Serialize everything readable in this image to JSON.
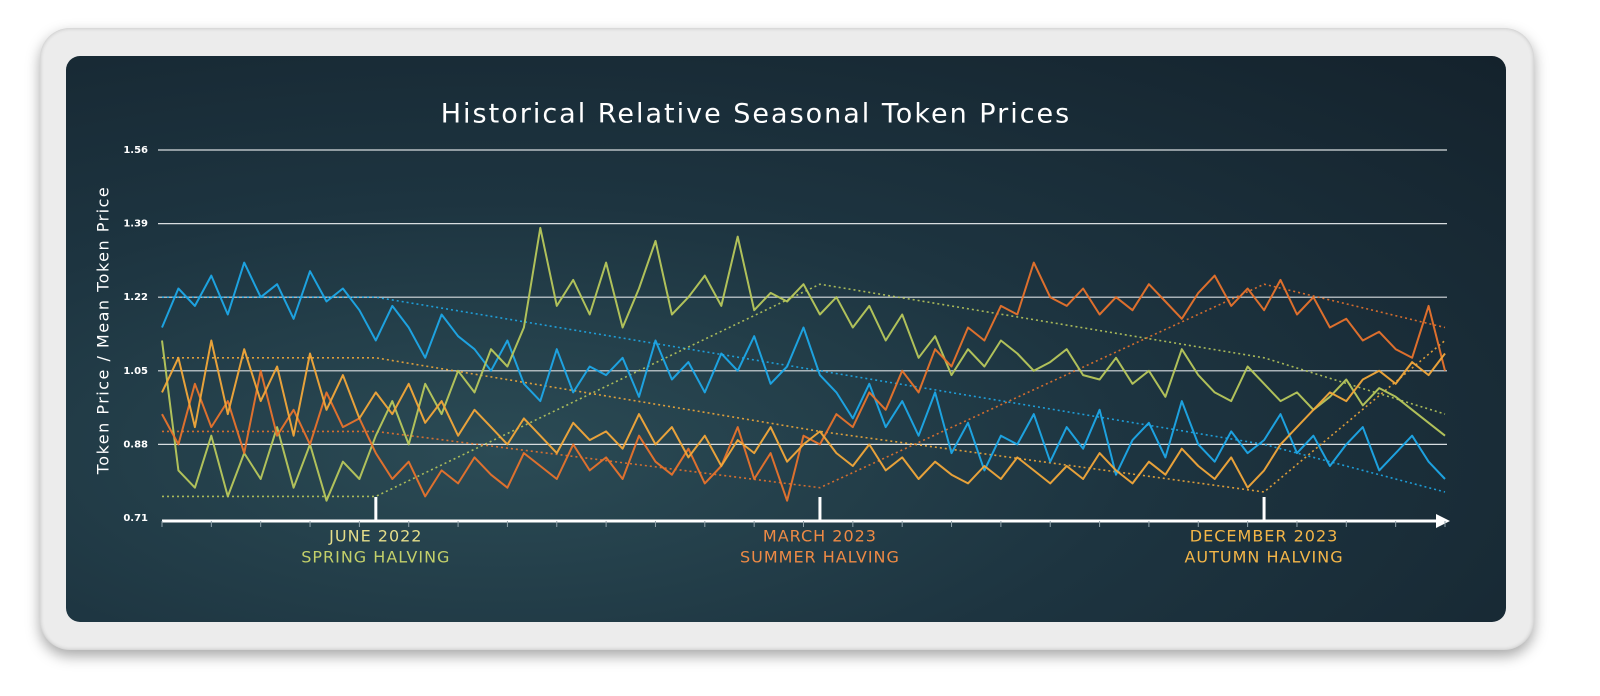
{
  "chart_data": {
    "type": "line",
    "title": "Historical Relative Seasonal Token Prices",
    "y_label": "Token Price / Mean Token Price",
    "ylim": [
      0.71,
      1.56
    ],
    "yticks": [
      0.71,
      0.88,
      1.05,
      1.22,
      1.39,
      1.56
    ],
    "grid": true,
    "xlim": [
      0,
      78
    ],
    "xticks": [
      0,
      3,
      6,
      9,
      12,
      15,
      18,
      21,
      24,
      27,
      30,
      33,
      36,
      39,
      42,
      45,
      48,
      51,
      54,
      57,
      60,
      63,
      66,
      69,
      72,
      75,
      78
    ],
    "series": [
      {
        "color": "#1ea8e8",
        "values": [
          1.15,
          1.24,
          1.2,
          1.27,
          1.18,
          1.3,
          1.22,
          1.25,
          1.17,
          1.28,
          1.21,
          1.24,
          1.19,
          1.12,
          1.2,
          1.15,
          1.08,
          1.18,
          1.13,
          1.1,
          1.05,
          1.12,
          1.02,
          0.98,
          1.1,
          1.0,
          1.06,
          1.04,
          1.08,
          0.99,
          1.12,
          1.03,
          1.07,
          1.0,
          1.09,
          1.05,
          1.13,
          1.02,
          1.06,
          1.15,
          1.04,
          1.0,
          0.94,
          1.02,
          0.92,
          0.98,
          0.9,
          1.0,
          0.86,
          0.93,
          0.82,
          0.9,
          0.88,
          0.95,
          0.84,
          0.92,
          0.87,
          0.96,
          0.81,
          0.89,
          0.93,
          0.85,
          0.98,
          0.88,
          0.84,
          0.91,
          0.86,
          0.89,
          0.95,
          0.86,
          0.9,
          0.83,
          0.88,
          0.92,
          0.82,
          0.86,
          0.9,
          0.84,
          0.8
        ]
      },
      {
        "color": "#b8c85c",
        "values": [
          1.12,
          0.82,
          0.78,
          0.9,
          0.76,
          0.86,
          0.8,
          0.92,
          0.78,
          0.88,
          0.75,
          0.84,
          0.8,
          0.9,
          0.98,
          0.88,
          1.02,
          0.95,
          1.05,
          1.0,
          1.1,
          1.06,
          1.15,
          1.38,
          1.2,
          1.26,
          1.18,
          1.3,
          1.15,
          1.24,
          1.35,
          1.18,
          1.22,
          1.27,
          1.2,
          1.36,
          1.19,
          1.23,
          1.21,
          1.25,
          1.18,
          1.22,
          1.15,
          1.2,
          1.12,
          1.18,
          1.08,
          1.13,
          1.04,
          1.1,
          1.06,
          1.12,
          1.09,
          1.05,
          1.07,
          1.1,
          1.04,
          1.03,
          1.08,
          1.02,
          1.05,
          0.99,
          1.1,
          1.04,
          1.0,
          0.98,
          1.06,
          1.02,
          0.98,
          1.0,
          0.96,
          0.99,
          1.03,
          0.97,
          1.01,
          0.99,
          0.96,
          0.93,
          0.9
        ]
      },
      {
        "color": "#e8732c",
        "values": [
          0.95,
          0.88,
          1.02,
          0.92,
          0.98,
          0.86,
          1.05,
          0.9,
          0.96,
          0.88,
          1.0,
          0.92,
          0.94,
          0.86,
          0.8,
          0.84,
          0.76,
          0.82,
          0.79,
          0.85,
          0.81,
          0.78,
          0.86,
          0.83,
          0.8,
          0.88,
          0.82,
          0.85,
          0.8,
          0.9,
          0.84,
          0.81,
          0.87,
          0.79,
          0.83,
          0.92,
          0.8,
          0.86,
          0.75,
          0.9,
          0.88,
          0.95,
          0.92,
          1.0,
          0.96,
          1.05,
          1.0,
          1.1,
          1.06,
          1.15,
          1.12,
          1.2,
          1.18,
          1.3,
          1.22,
          1.2,
          1.24,
          1.18,
          1.22,
          1.19,
          1.25,
          1.21,
          1.17,
          1.23,
          1.27,
          1.2,
          1.24,
          1.19,
          1.26,
          1.18,
          1.22,
          1.15,
          1.17,
          1.12,
          1.14,
          1.1,
          1.08,
          1.2,
          1.05
        ]
      },
      {
        "color": "#f2a83a",
        "values": [
          1.0,
          1.08,
          0.92,
          1.12,
          0.95,
          1.1,
          0.98,
          1.06,
          0.9,
          1.09,
          0.96,
          1.04,
          0.94,
          1.0,
          0.95,
          1.02,
          0.93,
          0.98,
          0.9,
          0.96,
          0.92,
          0.88,
          0.94,
          0.9,
          0.86,
          0.93,
          0.89,
          0.91,
          0.87,
          0.95,
          0.88,
          0.92,
          0.85,
          0.9,
          0.83,
          0.89,
          0.86,
          0.92,
          0.84,
          0.88,
          0.91,
          0.86,
          0.83,
          0.88,
          0.82,
          0.85,
          0.8,
          0.84,
          0.81,
          0.79,
          0.83,
          0.8,
          0.85,
          0.82,
          0.79,
          0.83,
          0.8,
          0.86,
          0.82,
          0.79,
          0.84,
          0.81,
          0.87,
          0.83,
          0.8,
          0.85,
          0.78,
          0.82,
          0.88,
          0.92,
          0.96,
          1.0,
          0.98,
          1.03,
          1.05,
          1.02,
          1.07,
          1.04,
          1.09
        ]
      }
    ],
    "trends": [
      {
        "color": "#1ea8e8",
        "x": [
          0,
          13,
          40,
          67,
          78
        ],
        "values": [
          1.22,
          1.22,
          1.05,
          0.88,
          0.77
        ]
      },
      {
        "color": "#b8c85c",
        "x": [
          0,
          13,
          40,
          67,
          78
        ],
        "values": [
          0.76,
          0.76,
          1.25,
          1.08,
          0.95
        ]
      },
      {
        "color": "#e8732c",
        "x": [
          0,
          13,
          40,
          67,
          78
        ],
        "values": [
          0.91,
          0.91,
          0.78,
          1.25,
          1.15
        ]
      },
      {
        "color": "#f2a83a",
        "x": [
          0,
          13,
          40,
          67,
          78
        ],
        "values": [
          1.08,
          1.08,
          0.91,
          0.77,
          1.12
        ]
      }
    ],
    "markers": [
      {
        "index": 13,
        "label": "JUNE 2022",
        "sublabel": "SPRING HALVING",
        "label_color": "#e4dd8a",
        "color": "#c3d06a"
      },
      {
        "index": 40,
        "label": "MARCH 2023",
        "sublabel": "SUMMER HALVING",
        "label_color": "#ee8a45",
        "color": "#ee8a45"
      },
      {
        "index": 67,
        "label": "DECEMBER 2023",
        "sublabel": "AUTUMN HALVING",
        "label_color": "#f4b648",
        "color": "#f4b648"
      }
    ]
  }
}
